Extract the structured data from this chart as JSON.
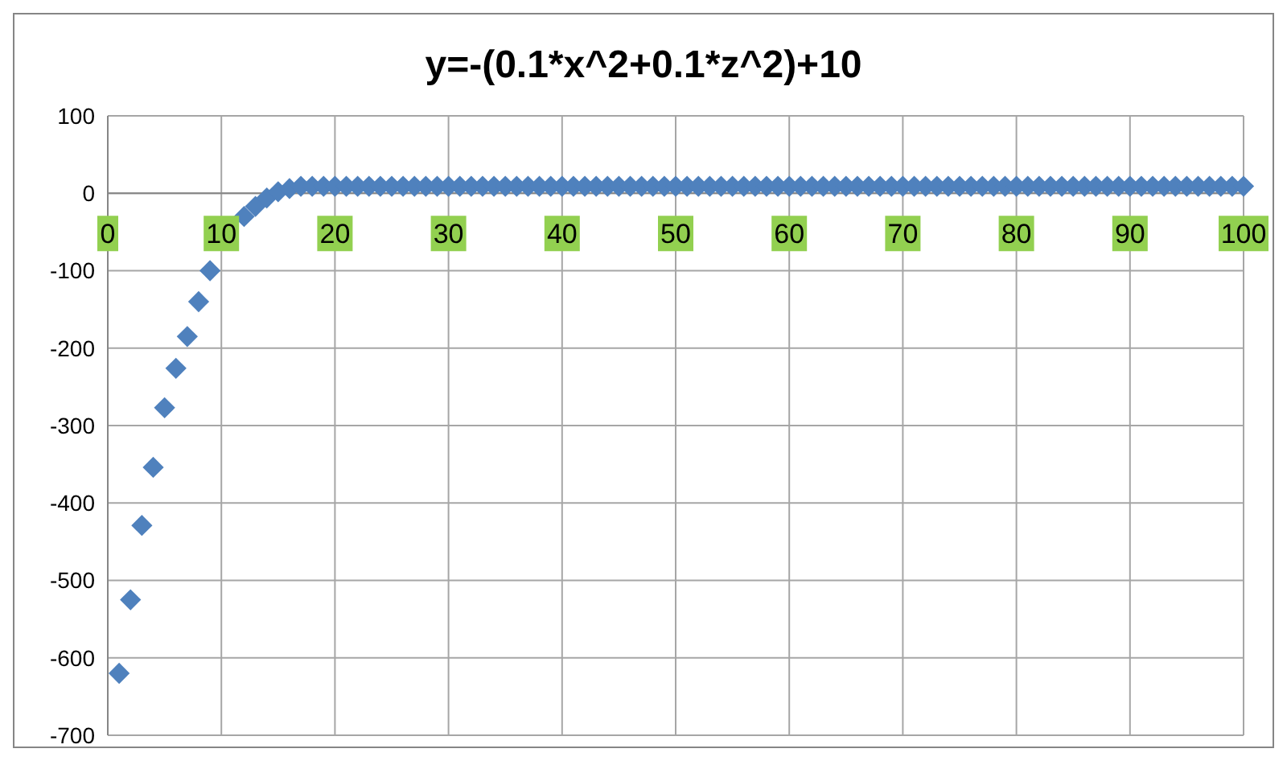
{
  "chart_data": {
    "type": "scatter",
    "title": "y=-(0.1*x^2+0.1*z^2)+10",
    "x": [
      1,
      2,
      3,
      4,
      5,
      6,
      7,
      8,
      9,
      12,
      13,
      14,
      15,
      16,
      17,
      18,
      19,
      20,
      21,
      22,
      23,
      24,
      25,
      26,
      27,
      28,
      29,
      30,
      31,
      32,
      33,
      34,
      35,
      36,
      37,
      38,
      39,
      40,
      41,
      42,
      43,
      44,
      45,
      46,
      47,
      48,
      49,
      50,
      51,
      52,
      53,
      54,
      55,
      56,
      57,
      58,
      59,
      60,
      61,
      62,
      63,
      64,
      65,
      66,
      67,
      68,
      69,
      70,
      71,
      72,
      73,
      74,
      75,
      76,
      77,
      78,
      79,
      80,
      81,
      82,
      83,
      84,
      85,
      86,
      87,
      88,
      89,
      90,
      91,
      92,
      93,
      94,
      95,
      96,
      97,
      98,
      99,
      100
    ],
    "series": [
      {
        "color": "#4f81bd",
        "values": [
          -620,
          -525,
          -429,
          -354,
          -277,
          -226,
          -185,
          -140,
          -100,
          -30,
          -17,
          -6,
          2,
          6,
          9,
          9,
          9,
          9,
          9,
          9,
          9,
          9,
          9,
          9,
          9,
          9,
          9,
          9,
          9,
          9,
          9,
          9,
          9,
          9,
          9,
          9,
          9,
          9,
          9,
          9,
          9,
          9,
          9,
          9,
          9,
          9,
          9,
          9,
          9,
          9,
          9,
          9,
          9,
          9,
          9,
          9,
          9,
          9,
          9,
          9,
          9,
          9,
          9,
          9,
          9,
          9,
          9,
          9,
          9,
          9,
          9,
          9,
          9,
          9,
          9,
          9,
          9,
          9,
          9,
          9,
          9,
          9,
          9,
          9,
          9,
          9,
          9,
          9,
          9,
          9,
          9,
          9,
          9,
          9,
          9,
          9,
          9,
          9
        ]
      }
    ],
    "xlim": [
      0,
      100
    ],
    "xticks": [
      0,
      10,
      20,
      30,
      40,
      50,
      60,
      70,
      80,
      90,
      100
    ],
    "ylim": [
      -700,
      100
    ],
    "yticks": [
      -700,
      -600,
      -500,
      -400,
      -300,
      -200,
      -100,
      0,
      100
    ],
    "grid": true,
    "marker": "diamond"
  }
}
